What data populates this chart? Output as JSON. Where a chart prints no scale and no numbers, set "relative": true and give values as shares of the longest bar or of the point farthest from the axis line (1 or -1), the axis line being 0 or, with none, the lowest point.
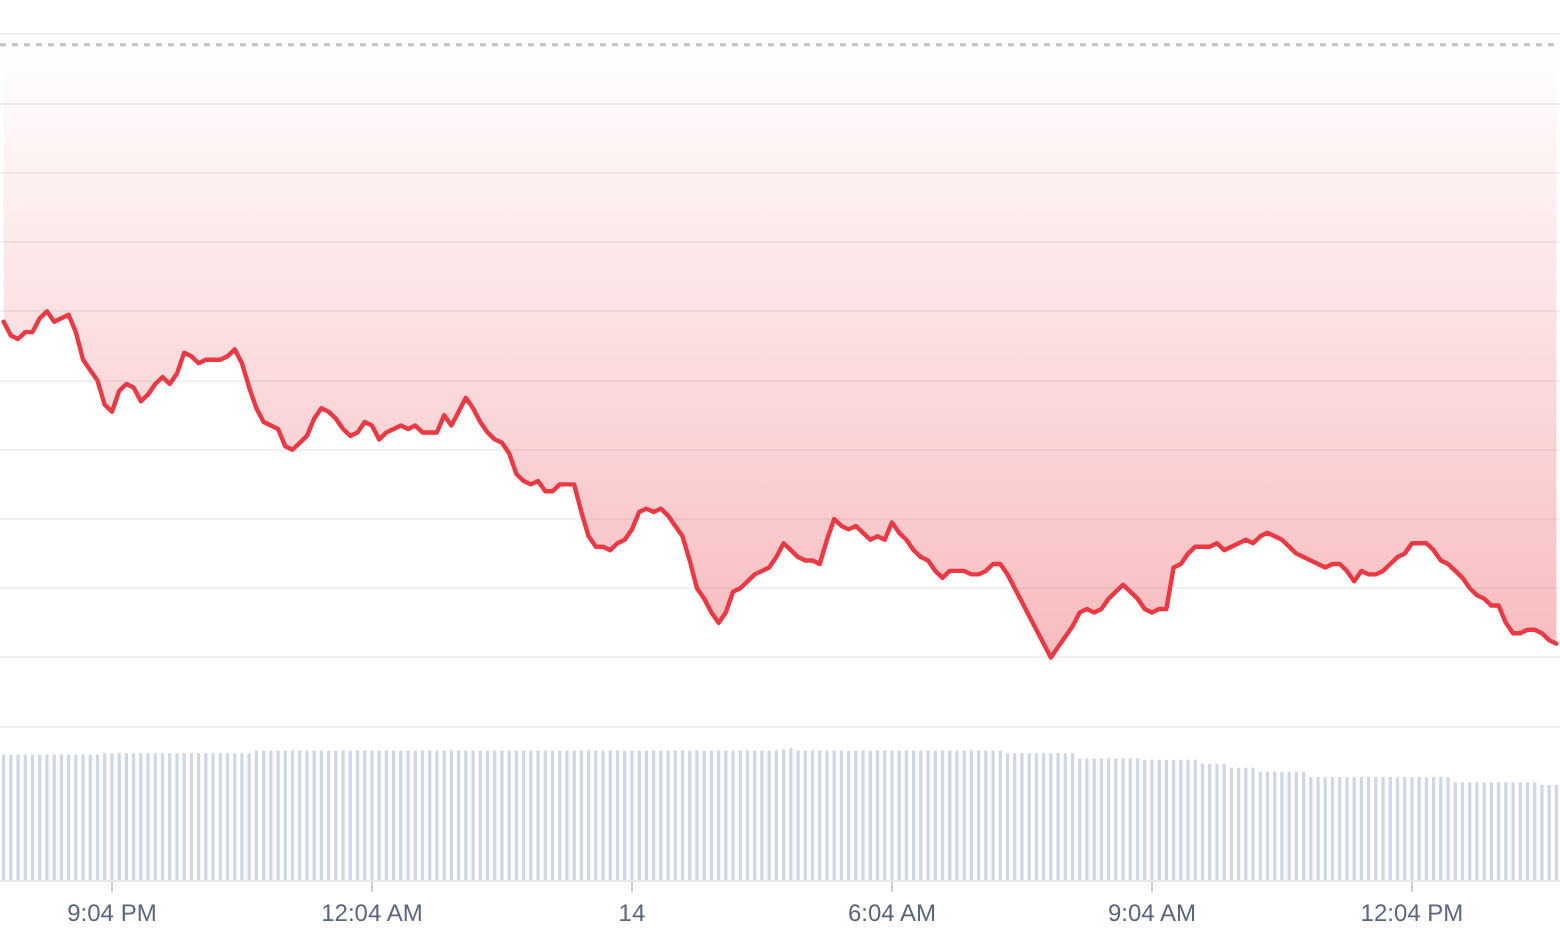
{
  "chart_data": [
    {
      "type": "area",
      "relative": true,
      "color": "#ea3943",
      "tick_labels": false,
      "grid": "y",
      "categories": [
        null,
        null,
        null,
        null,
        null,
        null,
        null,
        null,
        null,
        null,
        null,
        null,
        null,
        null,
        null,
        null,
        null,
        null,
        null,
        null,
        null,
        null,
        null,
        null,
        null,
        null,
        null,
        null,
        null,
        null,
        null,
        null,
        null,
        null,
        null,
        null,
        null,
        null,
        null,
        null,
        null,
        null,
        null,
        null,
        null,
        null,
        null,
        null,
        null,
        null,
        null,
        null,
        null,
        null,
        null,
        null,
        null,
        null,
        null,
        null,
        null,
        null,
        null,
        null,
        null,
        null,
        null,
        null,
        null,
        null,
        null,
        null,
        null,
        null,
        null,
        null,
        null,
        null,
        null,
        null,
        null,
        null,
        null,
        null,
        null,
        null,
        null,
        null,
        null,
        null,
        null,
        null,
        null,
        null,
        null,
        null,
        null,
        null,
        null,
        null,
        null,
        null,
        null,
        null,
        null,
        null,
        null,
        null,
        null,
        null,
        null,
        null,
        null,
        null,
        null,
        null,
        null,
        null,
        null,
        null,
        null,
        null,
        null,
        null,
        null,
        null,
        null,
        null,
        null,
        null,
        null,
        null,
        null,
        null,
        null,
        null,
        null,
        null,
        null,
        null,
        null,
        null,
        null,
        null,
        null,
        null,
        null,
        null,
        null,
        null,
        null,
        null,
        null,
        null,
        null,
        null,
        null,
        null,
        null,
        null,
        null,
        null,
        null,
        null,
        null,
        null,
        null,
        null,
        null,
        null,
        null,
        null,
        null,
        null,
        null,
        null,
        null,
        null,
        null,
        null,
        null,
        null,
        null,
        null,
        null,
        null,
        null,
        null,
        null,
        null,
        null,
        null,
        null,
        null,
        null,
        null,
        null,
        null,
        null,
        null,
        null,
        null,
        null,
        null,
        null,
        null,
        null,
        null,
        null,
        null,
        null,
        null,
        null,
        null,
        null,
        null
      ],
      "values": [
        0.97,
        0.93,
        0.92,
        0.94,
        0.94,
        0.98,
        1,
        0.97,
        0.98,
        0.99,
        0.94,
        0.86,
        0.83,
        0.8,
        0.73,
        0.71,
        0.77,
        0.79,
        0.78,
        0.74,
        0.76,
        0.79,
        0.81,
        0.79,
        0.82,
        0.88,
        0.87,
        0.85,
        0.86,
        0.86,
        0.86,
        0.87,
        0.89,
        0.85,
        0.78,
        0.72,
        0.68,
        0.67,
        0.66,
        0.61,
        0.6,
        0.62,
        0.64,
        0.69,
        0.72,
        0.71,
        0.69,
        0.66,
        0.64,
        0.65,
        0.68,
        0.67,
        0.63,
        0.65,
        0.66,
        0.67,
        0.66,
        0.67,
        0.65,
        0.65,
        0.65,
        0.7,
        0.67,
        0.71,
        0.75,
        0.72,
        0.68,
        0.65,
        0.63,
        0.62,
        0.59,
        0.53,
        0.51,
        0.5,
        0.51,
        0.48,
        0.48,
        0.5,
        0.5,
        0.5,
        0.42,
        0.35,
        0.32,
        0.32,
        0.31,
        0.33,
        0.34,
        0.37,
        0.42,
        0.43,
        0.42,
        0.43,
        0.41,
        0.38,
        0.35,
        0.28,
        0.2,
        0.17,
        0.13,
        0.1,
        0.13,
        0.19,
        0.2,
        0.22,
        0.24,
        0.25,
        0.26,
        0.29,
        0.33,
        0.31,
        0.29,
        0.28,
        0.28,
        0.27,
        0.34,
        0.4,
        0.38,
        0.37,
        0.38,
        0.36,
        0.34,
        0.35,
        0.34,
        0.39,
        0.36,
        0.34,
        0.31,
        0.29,
        0.28,
        0.25,
        0.23,
        0.25,
        0.25,
        0.25,
        0.24,
        0.24,
        0.25,
        0.27,
        0.27,
        0.24,
        0.2,
        0.16,
        0.12,
        0.08,
        0.04,
        0,
        0.03,
        0.06,
        0.09,
        0.13,
        0.14,
        0.13,
        0.14,
        0.17,
        0.19,
        0.21,
        0.19,
        0.17,
        0.14,
        0.13,
        0.14,
        0.14,
        0.26,
        0.27,
        0.3,
        0.32,
        0.32,
        0.32,
        0.33,
        0.31,
        0.32,
        0.33,
        0.34,
        0.33,
        0.35,
        0.36,
        0.35,
        0.34,
        0.32,
        0.3,
        0.29,
        0.28,
        0.27,
        0.26,
        0.27,
        0.27,
        0.25,
        0.22,
        0.25,
        0.24,
        0.24,
        0.25,
        0.27,
        0.29,
        0.3,
        0.33,
        0.33,
        0.33,
        0.31,
        0.28,
        0.27,
        0.25,
        0.23,
        0.2,
        0.18,
        0.17,
        0.15,
        0.15,
        0.1,
        0.07,
        0.07,
        0.08,
        0.08,
        0.07,
        0.05,
        0.04
      ],
      "ref_lines": [
        {
          "axis": "y",
          "value": 1.77,
          "color": "#bfc3c9",
          "line_style": "dotted"
        }
      ]
    },
    {
      "type": "bar",
      "relative": true,
      "color": "#cfd6e6",
      "tick_labels": "x",
      "categories": [
        null,
        null,
        null,
        null,
        null,
        null,
        null,
        null,
        null,
        null,
        null,
        null,
        null,
        null,
        null,
        "9:04 PM",
        null,
        null,
        null,
        null,
        null,
        null,
        null,
        null,
        null,
        null,
        null,
        null,
        null,
        null,
        null,
        null,
        null,
        null,
        null,
        null,
        null,
        null,
        null,
        null,
        null,
        null,
        null,
        null,
        null,
        null,
        null,
        null,
        null,
        null,
        null,
        "12:04 AM",
        null,
        null,
        null,
        null,
        null,
        null,
        null,
        null,
        null,
        null,
        null,
        null,
        null,
        null,
        null,
        null,
        null,
        null,
        null,
        null,
        null,
        null,
        null,
        null,
        null,
        null,
        null,
        null,
        null,
        null,
        null,
        null,
        null,
        null,
        null,
        "14",
        null,
        null,
        null,
        null,
        null,
        null,
        null,
        null,
        null,
        null,
        null,
        null,
        null,
        null,
        null,
        null,
        null,
        null,
        null,
        null,
        null,
        null,
        null,
        null,
        null,
        null,
        null,
        null,
        null,
        null,
        null,
        null,
        null,
        null,
        null,
        "6:04 AM",
        null,
        null,
        null,
        null,
        null,
        null,
        null,
        null,
        null,
        null,
        null,
        null,
        null,
        null,
        null,
        null,
        null,
        null,
        null,
        null,
        null,
        null,
        null,
        null,
        null,
        null,
        null,
        null,
        null,
        null,
        null,
        null,
        null,
        null,
        null,
        "9:04 AM",
        null,
        null,
        null,
        null,
        null,
        null,
        null,
        null,
        null,
        null,
        null,
        null,
        null,
        null,
        null,
        null,
        null,
        null,
        null,
        null,
        null,
        null,
        null,
        null,
        null,
        null,
        null,
        null,
        null,
        null,
        null,
        null,
        null,
        null,
        null,
        "12:04 PM",
        null,
        null,
        null,
        null,
        null,
        null,
        null,
        null,
        null,
        null,
        null,
        null,
        null,
        null,
        null,
        null,
        null,
        null,
        null,
        null
      ],
      "values": [
        0.95,
        0.95,
        0.95,
        0.95,
        0.95,
        0.95,
        0.95,
        0.95,
        0.95,
        0.95,
        0.95,
        0.95,
        0.95,
        0.95,
        0.96,
        0.96,
        0.96,
        0.96,
        0.96,
        0.96,
        0.96,
        0.96,
        0.96,
        0.96,
        0.96,
        0.96,
        0.96,
        0.96,
        0.96,
        0.96,
        0.96,
        0.96,
        0.96,
        0.96,
        0.96,
        0.98,
        0.98,
        0.98,
        0.98,
        0.98,
        0.98,
        0.98,
        0.98,
        0.98,
        0.98,
        0.98,
        0.98,
        0.98,
        0.98,
        0.98,
        0.98,
        0.98,
        0.98,
        0.98,
        0.98,
        0.98,
        0.98,
        0.98,
        0.98,
        0.98,
        0.98,
        0.98,
        0.98,
        0.98,
        0.98,
        0.98,
        0.98,
        0.98,
        0.98,
        0.98,
        0.98,
        0.98,
        0.98,
        0.98,
        0.98,
        0.98,
        0.98,
        0.98,
        0.98,
        0.98,
        0.98,
        0.98,
        0.98,
        0.98,
        0.98,
        0.98,
        0.98,
        0.98,
        0.98,
        0.98,
        0.98,
        0.98,
        0.98,
        0.98,
        0.98,
        0.98,
        0.98,
        0.98,
        0.98,
        0.98,
        0.98,
        0.98,
        0.98,
        0.98,
        0.98,
        0.98,
        0.98,
        0.98,
        0.99,
        1,
        0.98,
        0.98,
        0.98,
        0.98,
        0.98,
        0.98,
        0.98,
        0.98,
        0.98,
        0.98,
        0.98,
        0.98,
        0.98,
        0.98,
        0.98,
        0.98,
        0.98,
        0.98,
        0.98,
        0.98,
        0.98,
        0.98,
        0.98,
        0.98,
        0.98,
        0.98,
        0.98,
        0.98,
        0.98,
        0.96,
        0.96,
        0.96,
        0.96,
        0.96,
        0.96,
        0.96,
        0.96,
        0.96,
        0.96,
        0.92,
        0.92,
        0.92,
        0.92,
        0.92,
        0.92,
        0.92,
        0.92,
        0.92,
        0.91,
        0.91,
        0.91,
        0.91,
        0.91,
        0.91,
        0.91,
        0.91,
        0.88,
        0.88,
        0.88,
        0.88,
        0.85,
        0.85,
        0.85,
        0.85,
        0.82,
        0.82,
        0.82,
        0.82,
        0.82,
        0.82,
        0.82,
        0.78,
        0.78,
        0.78,
        0.78,
        0.78,
        0.78,
        0.78,
        0.78,
        0.78,
        0.78,
        0.78,
        0.78,
        0.78,
        0.78,
        0.78,
        0.78,
        0.78,
        0.78,
        0.78,
        0.78,
        0.74,
        0.74,
        0.74,
        0.74,
        0.74,
        0.74,
        0.74,
        0.74,
        0.74,
        0.74,
        0.74,
        0.74,
        0.72,
        0.72,
        0.72
      ]
    }
  ]
}
